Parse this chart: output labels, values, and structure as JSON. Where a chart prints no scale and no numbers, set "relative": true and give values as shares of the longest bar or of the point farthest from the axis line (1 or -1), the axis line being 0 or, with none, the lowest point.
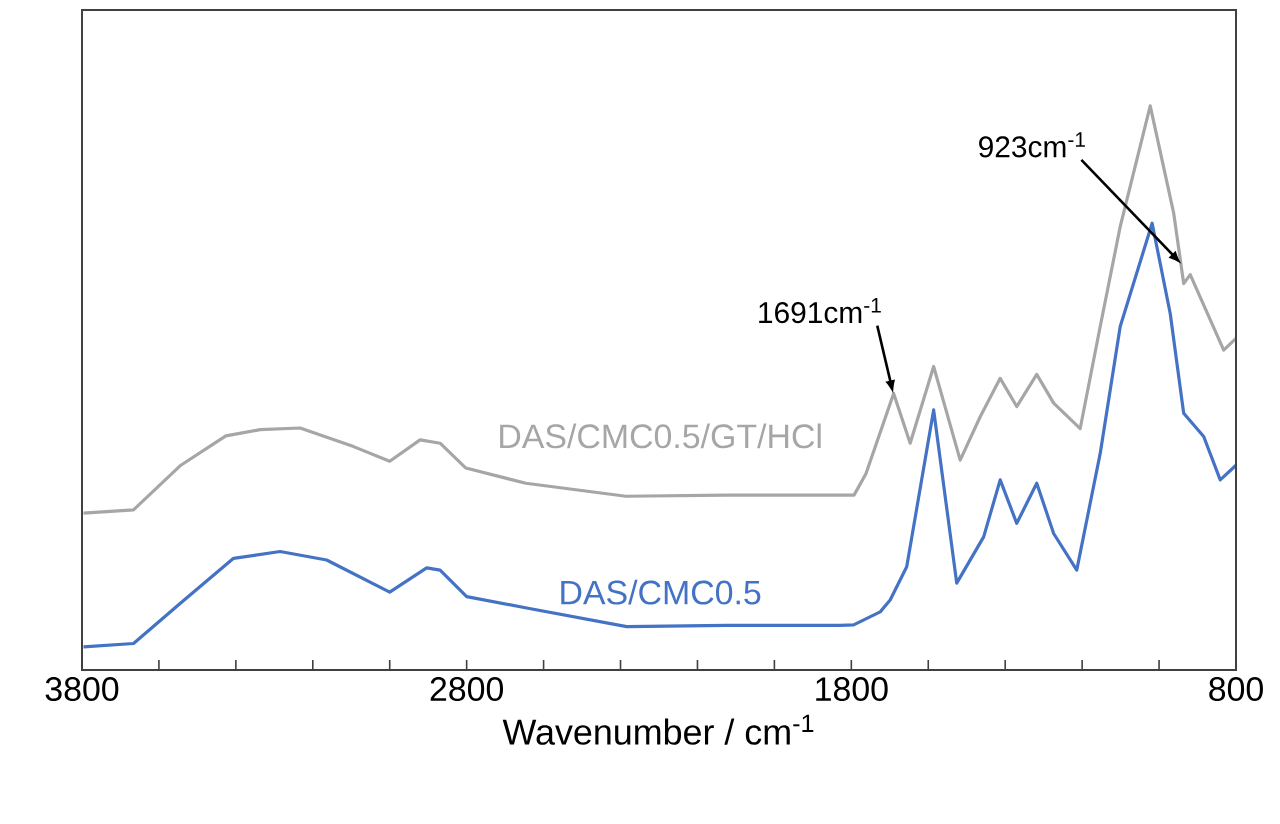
{
  "chart_data": {
    "type": "line",
    "relative": true,
    "xlabel": "Wavenumber / cm$^{-1}$",
    "xlim": [
      3800,
      800
    ],
    "xticks": [
      3800,
      2800,
      1800,
      800
    ],
    "legend": false,
    "marker": "none",
    "line_style": "solid",
    "annotations": [
      {
        "text": "1691cm$^{-1}$",
        "x": 1691,
        "y": 0.49
      },
      {
        "text": "923cm$^{-1}$",
        "x": 942,
        "y": 0.72
      }
    ],
    "series": [
      {
        "name": "DAS/CMC0.5/GT/HCl",
        "color": "#a6a6a6",
        "x": [
          3796,
          3666,
          3545,
          3426,
          3337,
          3233,
          3094,
          3000,
          2921,
          2869,
          2802,
          2646,
          2386,
          2126,
          1829,
          1793,
          1762,
          1690,
          1647,
          1586,
          1517,
          1465,
          1413,
          1370,
          1318,
          1274,
          1205,
          1153,
          1101,
          1023,
          962,
          936,
          919,
          832,
          800
        ],
        "values": [
          0.278,
          0.284,
          0.362,
          0.415,
          0.426,
          0.429,
          0.396,
          0.37,
          0.408,
          0.402,
          0.358,
          0.331,
          0.308,
          0.31,
          0.31,
          0.31,
          0.348,
          0.49,
          0.402,
          0.538,
          0.372,
          0.449,
          0.517,
          0.467,
          0.524,
          0.473,
          0.428,
          0.609,
          0.786,
          1,
          0.81,
          0.685,
          0.701,
          0.567,
          0.588
        ]
      },
      {
        "name": "DAS/CMC0.5",
        "color": "#4472c4",
        "x": [
          3796,
          3666,
          3545,
          3406,
          3285,
          3164,
          3000,
          2904,
          2869,
          2800,
          2644,
          2384,
          2124,
          1829,
          1794,
          1725,
          1699,
          1656,
          1586,
          1526,
          1456,
          1413,
          1370,
          1318,
          1274,
          1214,
          1153,
          1101,
          1018,
          971,
          936,
          884,
          841,
          800
        ],
        "values": [
          0.041,
          0.047,
          0.118,
          0.198,
          0.21,
          0.195,
          0.138,
          0.181,
          0.177,
          0.13,
          0.11,
          0.077,
          0.079,
          0.079,
          0.08,
          0.103,
          0.124,
          0.183,
          0.461,
          0.154,
          0.236,
          0.337,
          0.26,
          0.331,
          0.242,
          0.177,
          0.384,
          0.609,
          0.792,
          0.632,
          0.455,
          0.414,
          0.337,
          0.363
        ]
      }
    ]
  }
}
